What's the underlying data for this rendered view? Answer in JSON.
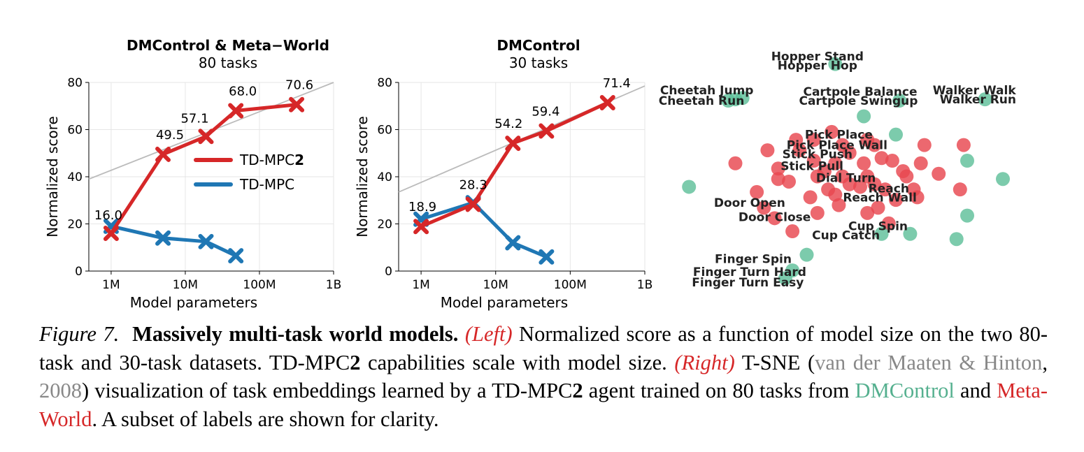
{
  "colors": {
    "td_mpc2": "#d62728",
    "td_mpc": "#1f77b4",
    "dmcontrol": "#5fbf9a",
    "metaworld": "#e8474f",
    "trend": "#bbbbbb"
  },
  "chart_data": [
    {
      "type": "line",
      "title": "DMControl & Meta−World",
      "subtitle": "80 tasks",
      "xlabel": "Model parameters",
      "ylabel": "Normalized score",
      "xscale": "log",
      "xlim": [
        500000,
        1000000000
      ],
      "ylim": [
        0,
        80
      ],
      "xticks": [
        1000000,
        10000000,
        100000000,
        1000000000
      ],
      "xtick_labels": [
        "1M",
        "10M",
        "100M",
        "1B"
      ],
      "yticks": [
        0,
        20,
        40,
        60,
        80
      ],
      "ytick_labels": [
        "0",
        "20",
        "40",
        "60",
        "80"
      ],
      "grid": true,
      "legend": "center-right",
      "series": [
        {
          "name": "TD-MPC2",
          "name_plain": "TD-MPC",
          "name_bold": "2",
          "color_key": "td_mpc2",
          "x": [
            1000000,
            5000000,
            19000000,
            48000000,
            317000000
          ],
          "y": [
            16.0,
            49.5,
            57.1,
            68.0,
            70.6
          ],
          "labels": [
            "16.0",
            "49.5",
            "57.1",
            "68.0",
            "70.6"
          ]
        },
        {
          "name": "TD-MPC",
          "name_plain": "TD-MPC",
          "name_bold": "",
          "color_key": "td_mpc",
          "x": [
            1000000,
            5000000,
            19000000,
            48000000
          ],
          "y": [
            19,
            14,
            12.5,
            6.5
          ],
          "labels": []
        }
      ],
      "trend": {
        "x": [
          500000,
          1000000000
        ],
        "y": [
          39,
          80
        ]
      }
    },
    {
      "type": "line",
      "title": "DMControl",
      "subtitle": "30 tasks",
      "xlabel": "Model parameters",
      "ylabel": "Normalized score",
      "xscale": "log",
      "xlim": [
        500000,
        1000000000
      ],
      "ylim": [
        0,
        80
      ],
      "xticks": [
        1000000,
        10000000,
        100000000,
        1000000000
      ],
      "xtick_labels": [
        "1M",
        "10M",
        "100M",
        "1B"
      ],
      "yticks": [
        0,
        20,
        40,
        60,
        80
      ],
      "ytick_labels": [
        "0",
        "20",
        "40",
        "60",
        "80"
      ],
      "grid": true,
      "legend": "",
      "series": [
        {
          "name": "TD-MPC2",
          "name_plain": "TD-MPC",
          "name_bold": "2",
          "color_key": "td_mpc2",
          "x": [
            1000000,
            5000000,
            17000000,
            48000000,
            317000000
          ],
          "y": [
            18.9,
            28.3,
            54.2,
            59.4,
            71.4
          ],
          "labels": [
            "18.9",
            "28.3",
            "54.2",
            "59.4",
            "71.4"
          ]
        },
        {
          "name": "TD-MPC",
          "name_plain": "TD-MPC",
          "name_bold": "",
          "color_key": "td_mpc",
          "x": [
            1000000,
            5000000,
            17000000,
            48000000
          ],
          "y": [
            22,
            29,
            12,
            6
          ],
          "labels": []
        }
      ],
      "trend": {
        "x": [
          500000,
          1000000000
        ],
        "y": [
          33.5,
          78.5
        ]
      }
    },
    {
      "type": "scatter",
      "title": "",
      "xlim": [
        0,
        100
      ],
      "ylim": [
        0,
        100
      ],
      "labels": [
        {
          "text": "Hopper Stand",
          "x": 38,
          "y": 94
        },
        {
          "text": "Hopper Hop",
          "x": 38,
          "y": 90.5
        },
        {
          "text": "Cheetah Jump",
          "x": 7,
          "y": 81
        },
        {
          "text": "Cheetah Run",
          "x": 5.5,
          "y": 77
        },
        {
          "text": "Cartpole Balance",
          "x": 50,
          "y": 80.5
        },
        {
          "text": "Cartpole Swingup",
          "x": 49.5,
          "y": 77
        },
        {
          "text": "Walker Walk",
          "x": 82,
          "y": 81
        },
        {
          "text": "Walker Run",
          "x": 83,
          "y": 77.5
        },
        {
          "text": "Pick Place",
          "x": 44,
          "y": 64
        },
        {
          "text": "Pick Place Wall",
          "x": 43.5,
          "y": 60
        },
        {
          "text": "Stick Push",
          "x": 38,
          "y": 56.5
        },
        {
          "text": "Stick Pull",
          "x": 36.5,
          "y": 52
        },
        {
          "text": "Dial Turn",
          "x": 46,
          "y": 47.5
        },
        {
          "text": "Reach",
          "x": 58,
          "y": 43.5
        },
        {
          "text": "Reach Wall",
          "x": 55.5,
          "y": 40
        },
        {
          "text": "Door Open",
          "x": 19,
          "y": 38
        },
        {
          "text": "Door Close",
          "x": 26,
          "y": 32.5
        },
        {
          "text": "Cup Spin",
          "x": 55,
          "y": 29
        },
        {
          "text": "Cup Catch",
          "x": 46,
          "y": 25.5
        },
        {
          "text": "Finger Spin",
          "x": 20,
          "y": 16.5
        },
        {
          "text": "Finger Turn Hard",
          "x": 19,
          "y": 11.5
        },
        {
          "text": "Finger Turn Easy",
          "x": 18.5,
          "y": 7.5
        }
      ],
      "points_dmcontrol": [
        [
          43,
          91
        ],
        [
          15,
          77.5
        ],
        [
          17,
          78
        ],
        [
          13,
          77
        ],
        [
          61,
          77
        ],
        [
          85,
          77.5
        ],
        [
          2,
          44
        ],
        [
          90,
          47
        ],
        [
          80,
          54
        ],
        [
          80,
          33
        ],
        [
          77,
          24
        ],
        [
          31,
          12
        ],
        [
          29,
          9
        ],
        [
          35,
          18
        ],
        [
          56,
          26
        ],
        [
          64,
          26
        ],
        [
          60,
          64
        ],
        [
          51,
          71
        ]
      ],
      "points_metaworld": [
        [
          42,
          65
        ],
        [
          37,
          62
        ],
        [
          32,
          62
        ],
        [
          45,
          60
        ],
        [
          54,
          60
        ],
        [
          52,
          62
        ],
        [
          68,
          60
        ],
        [
          79,
          60
        ],
        [
          24,
          58
        ],
        [
          33,
          58
        ],
        [
          47,
          57
        ],
        [
          56,
          55
        ],
        [
          15,
          53
        ],
        [
          27,
          51
        ],
        [
          37,
          54
        ],
        [
          43,
          53
        ],
        [
          51,
          53
        ],
        [
          59,
          54
        ],
        [
          67,
          53
        ],
        [
          40,
          50
        ],
        [
          45,
          48
        ],
        [
          52,
          48
        ],
        [
          62,
          50
        ],
        [
          27,
          47
        ],
        [
          30,
          46
        ],
        [
          38,
          48
        ],
        [
          47,
          45
        ],
        [
          54,
          45
        ],
        [
          63,
          48
        ],
        [
          72,
          49
        ],
        [
          41,
          43
        ],
        [
          43,
          41
        ],
        [
          50,
          44
        ],
        [
          57,
          43
        ],
        [
          65,
          43
        ],
        [
          21,
          42
        ],
        [
          78,
          43
        ],
        [
          36,
          40
        ],
        [
          44,
          37
        ],
        [
          60,
          39
        ],
        [
          66,
          40
        ],
        [
          55,
          36
        ],
        [
          23,
          36
        ],
        [
          38,
          34
        ],
        [
          52,
          34
        ],
        [
          26,
          32
        ],
        [
          58,
          30
        ],
        [
          31,
          27
        ]
      ]
    }
  ],
  "caption": {
    "fig_label": "Figure 7.",
    "title": "Massively multi-task world models.",
    "left_tag": "(Left)",
    "text1": " Normalized score as a function of model size on the two 80-task and 30-task datasets. TD-MPC",
    "bold2a": "2",
    "text2": " capabilities scale with model size. ",
    "right_tag": "(Right)",
    "text3": " T-SNE (",
    "cite_author": "van der Maaten & Hinton",
    "cite_sep": ", ",
    "cite_year": "2008",
    "text4": ") visualization of task embeddings learned by a TD-MPC",
    "bold2b": "2",
    "text5": " agent trained on 80 tasks from ",
    "dmcontrol": "DMControl",
    "and": " and ",
    "metaworld": "Meta-World",
    "text6": ". A subset of labels are shown for clarity."
  }
}
